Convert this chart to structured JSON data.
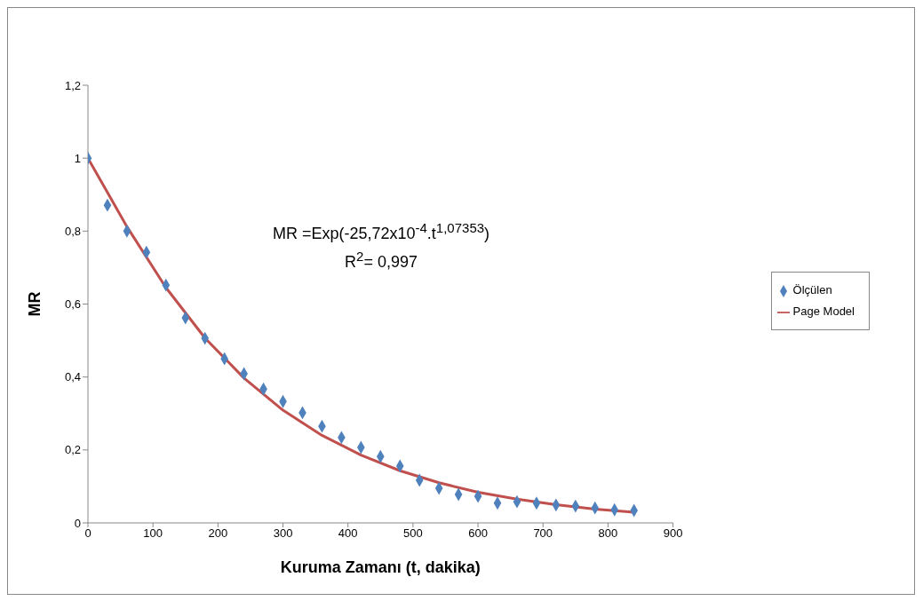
{
  "chart_data": {
    "type": "scatter",
    "xlabel": "Kuruma Zamanı (t, dakika)",
    "ylabel": "MR",
    "annotations": [
      "MR =Exp(-25,72x10$^{-4}$.t$^{1,07353}$)",
      "R$^{2}$= 0,997"
    ],
    "xlim": [
      0,
      900
    ],
    "xticks": [
      0,
      100,
      200,
      300,
      400,
      500,
      600,
      700,
      800,
      900
    ],
    "ylim": [
      0,
      1.2
    ],
    "yticks": [
      0,
      {
        "value": 0.2,
        "label": "0,2"
      },
      {
        "value": 0.4,
        "label": "0,4"
      },
      {
        "value": 0.6,
        "label": "0,6"
      },
      {
        "value": 0.8,
        "label": "0,8"
      },
      1,
      {
        "value": 1.2,
        "label": "1,2"
      }
    ],
    "grid": false,
    "legend": "right",
    "series": [
      {
        "name": "Ölçülen",
        "marker": "diamond",
        "color": "#4f81bd",
        "x": [
          0,
          30,
          60,
          90,
          120,
          150,
          180,
          210,
          240,
          270,
          300,
          330,
          360,
          390,
          420,
          450,
          480,
          510,
          540,
          570,
          600,
          630,
          660,
          690,
          720,
          750,
          780,
          810,
          840
        ],
        "values": [
          1.0,
          0.871,
          0.8,
          0.742,
          0.652,
          0.562,
          0.506,
          0.45,
          0.409,
          0.367,
          0.333,
          0.302,
          0.265,
          0.234,
          0.207,
          0.182,
          0.156,
          0.117,
          0.095,
          0.078,
          0.073,
          0.054,
          0.058,
          0.054,
          0.049,
          0.046,
          0.041,
          0.036,
          0.034
        ]
      },
      {
        "name": "Page Model",
        "type": "line",
        "marker": "none",
        "line_style": "solid",
        "color": "#c0504d",
        "x": [
          0,
          30,
          60,
          120,
          180,
          240,
          300,
          360,
          420,
          480,
          540,
          600,
          660,
          720,
          780,
          840
        ],
        "values": [
          1.0,
          0.906,
          0.812,
          0.645,
          0.507,
          0.397,
          0.309,
          0.24,
          0.186,
          0.143,
          0.11,
          0.084,
          0.065,
          0.05,
          0.038,
          0.029
        ]
      }
    ]
  }
}
